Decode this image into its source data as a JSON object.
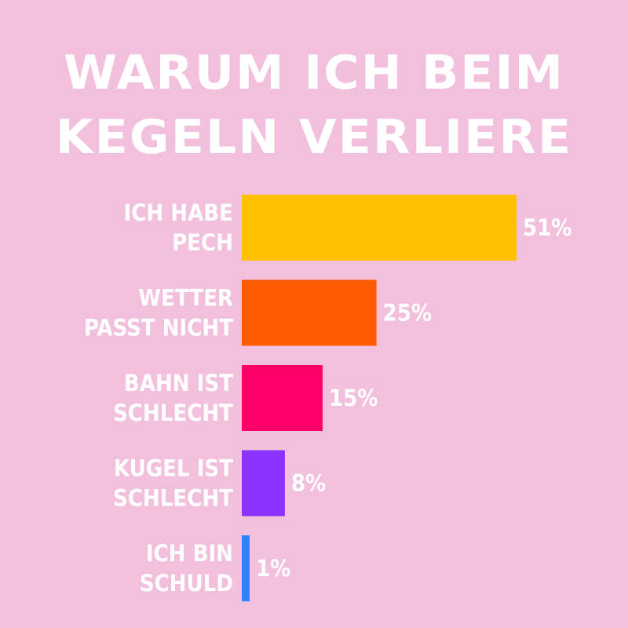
{
  "title_lines": [
    "WARUM ICH BEIM",
    "KEGELN VERLIERE"
  ],
  "chart_data": {
    "type": "bar",
    "orientation": "horizontal",
    "title": "WARUM ICH BEIM KEGELN VERLIERE",
    "categories": [
      [
        "ICH HABE",
        "PECH"
      ],
      [
        "WETTER",
        "PASST NICHT"
      ],
      [
        "BAHN IST",
        "SCHLECHT"
      ],
      [
        "KUGEL IST",
        "SCHLECHT"
      ],
      [
        "ICH BIN",
        "SCHULD"
      ]
    ],
    "values": [
      51,
      25,
      15,
      8,
      1
    ],
    "value_labels": [
      "51%",
      "25%",
      "15%",
      "8%",
      "1%"
    ],
    "unit": "%",
    "colors": [
      "#ffc000",
      "#ff5a00",
      "#ff0068",
      "#8c33ff",
      "#3380ff"
    ],
    "xlim": [
      0,
      51
    ],
    "grid": false,
    "legend": "none"
  },
  "colors": {
    "background": "#f2c0dc",
    "text": "#ffffff"
  }
}
